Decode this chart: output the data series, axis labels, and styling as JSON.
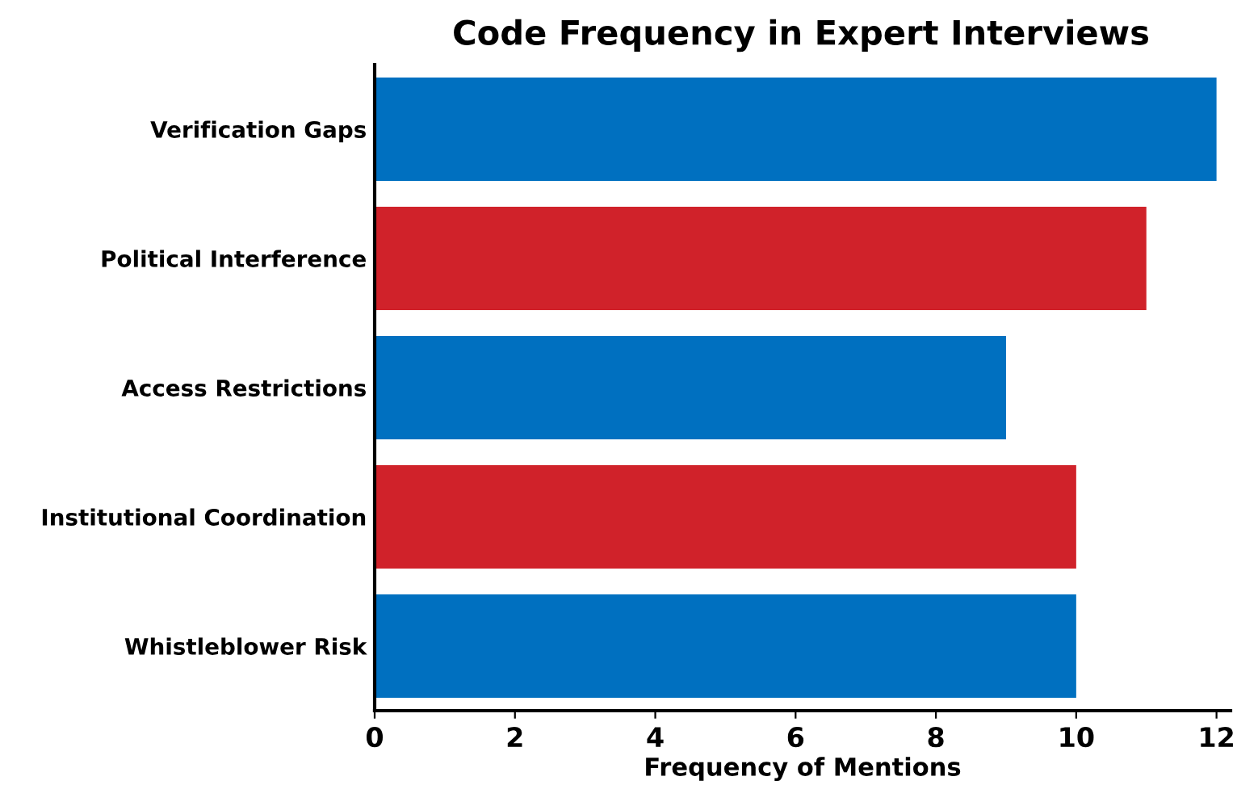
{
  "chart_data": {
    "type": "bar",
    "orientation": "horizontal",
    "title": "Code Frequency in Expert Interviews",
    "xlabel": "Frequency of Mentions",
    "categories": [
      "Verification Gaps",
      "Political Interference",
      "Access Restrictions",
      "Institutional Coordination",
      "Whistleblower Risk"
    ],
    "values": [
      12,
      11,
      9,
      10,
      10
    ],
    "colors": [
      "#0070c0",
      "#d0222a",
      "#0070c0",
      "#d0222a",
      "#0070c0"
    ],
    "xlim": [
      0,
      12.2
    ],
    "xticks": [
      0,
      2,
      4,
      6,
      8,
      10,
      12
    ],
    "grid": false,
    "legend": false
  }
}
